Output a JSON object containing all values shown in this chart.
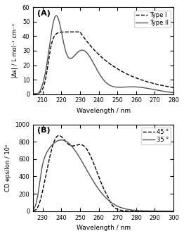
{
  "panel_A": {
    "title": "(A)",
    "xlabel": "Wavelength / nm",
    "ylabel": "|Δε| / L mol⁻¹ cm⁻¹",
    "xlim": [
      205,
      280
    ],
    "ylim": [
      0,
      60
    ],
    "yticks": [
      0,
      10,
      20,
      30,
      40,
      50,
      60
    ],
    "xticks": [
      210,
      220,
      230,
      240,
      250,
      260,
      270,
      280
    ],
    "legend": [
      "Type I",
      "Type II"
    ]
  },
  "panel_B": {
    "title": "(B)",
    "xlabel": "Wavelength / nm",
    "ylabel": "CD epsilon / 10²",
    "xlim": [
      225,
      300
    ],
    "ylim": [
      0,
      1000
    ],
    "yticks": [
      0,
      200,
      400,
      600,
      800,
      1000
    ],
    "xticks": [
      230,
      240,
      250,
      260,
      270,
      280,
      290,
      300
    ],
    "legend": [
      "45 °",
      "35 °"
    ]
  },
  "background_color": "#ffffff",
  "line_color_dashed": "#000000",
  "line_color_solid": "#555555"
}
